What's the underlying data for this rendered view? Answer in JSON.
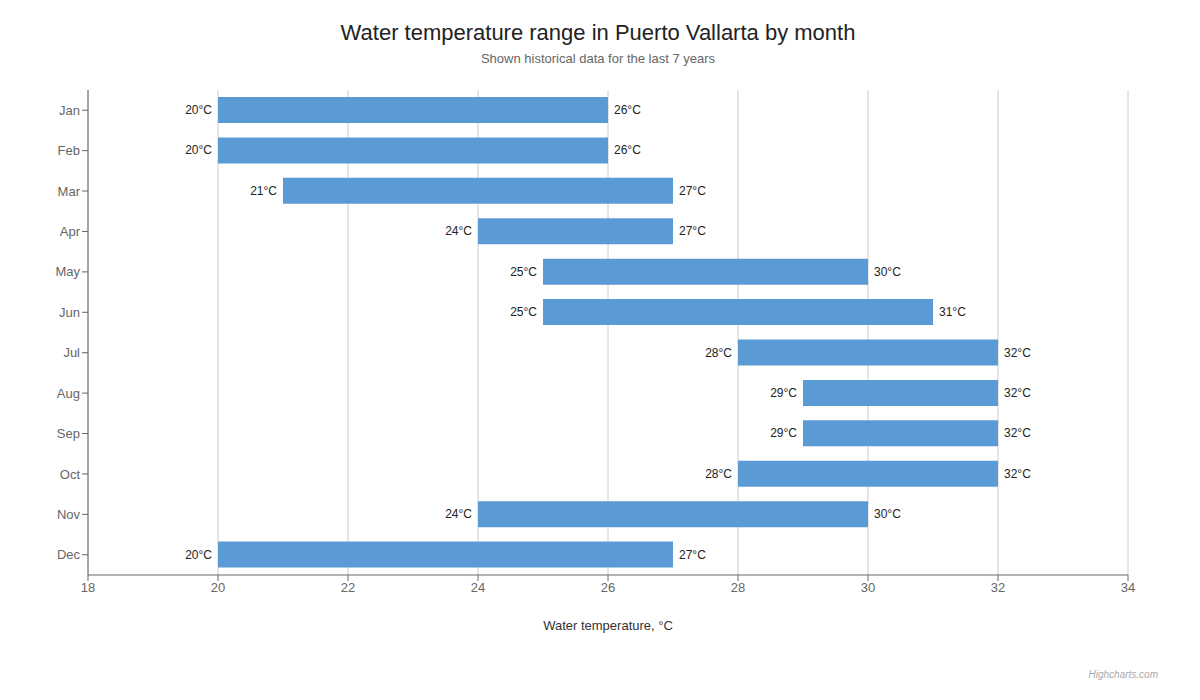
{
  "chart_data": {
    "type": "bar",
    "orientation": "horizontal",
    "title": "Water temperature range in Puerto Vallarta by month",
    "subtitle": "Shown historical data for the last 7 years",
    "xlabel": "Water temperature, °C",
    "categories": [
      "Jan",
      "Feb",
      "Mar",
      "Apr",
      "May",
      "Jun",
      "Jul",
      "Aug",
      "Sep",
      "Oct",
      "Nov",
      "Dec"
    ],
    "low": [
      20,
      20,
      21,
      24,
      25,
      25,
      28,
      29,
      29,
      28,
      24,
      20
    ],
    "high": [
      26,
      26,
      27,
      27,
      30,
      31,
      32,
      32,
      32,
      32,
      30,
      27
    ],
    "low_labels": [
      "20°C",
      "20°C",
      "21°C",
      "24°C",
      "25°C",
      "25°C",
      "28°C",
      "29°C",
      "29°C",
      "28°C",
      "24°C",
      "20°C"
    ],
    "high_labels": [
      "26°C",
      "26°C",
      "27°C",
      "27°C",
      "30°C",
      "31°C",
      "32°C",
      "32°C",
      "32°C",
      "32°C",
      "30°C",
      "27°C"
    ],
    "color": "#5b9bd5",
    "xlim": [
      18,
      34
    ],
    "xticks": [
      18,
      20,
      22,
      24,
      26,
      28,
      30,
      32,
      34
    ],
    "grid": true,
    "annotations": [
      "Highcharts.com"
    ]
  }
}
